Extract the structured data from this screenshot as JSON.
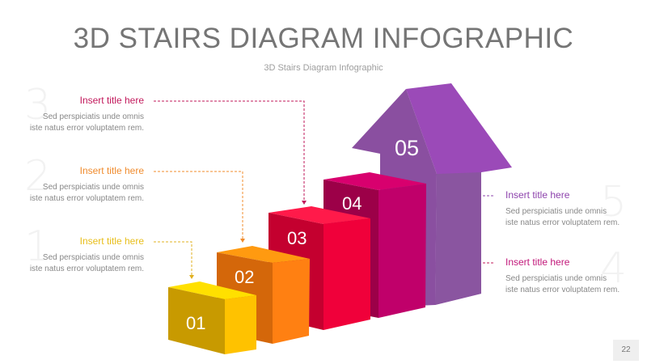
{
  "title": "3D STAIRS DIAGRAM INFOGRAPHIC",
  "subtitle": "3D Stairs Diagram Infographic",
  "items": [
    {
      "num": "1",
      "step": "01",
      "title": "Insert title here",
      "desc1": "Sed perspiciatis unde omnis",
      "desc2": "iste natus error voluptatem rem.",
      "color": "#f0c419"
    },
    {
      "num": "2",
      "step": "02",
      "title": "Insert title here",
      "desc1": "Sed perspiciatis unde omnis",
      "desc2": "iste natus error voluptatem rem.",
      "color": "#f08c2e"
    },
    {
      "num": "3",
      "step": "03",
      "title": "Insert title here",
      "desc1": "Sed perspiciatis unde omnis",
      "desc2": "iste natus error voluptatem rem.",
      "color": "#d81b4c"
    },
    {
      "num": "4",
      "step": "04",
      "title": "Insert title here",
      "desc1": "Sed perspiciatis unde omnis",
      "desc2": "iste natus error voluptatem rem.",
      "color": "#c2187a"
    },
    {
      "num": "5",
      "step": "05",
      "title": "Insert title here",
      "desc1": "Sed perspiciatis unde omnis",
      "desc2": "iste natus error voluptatem rem.",
      "color": "#8e44ad"
    }
  ],
  "page_number": "22"
}
